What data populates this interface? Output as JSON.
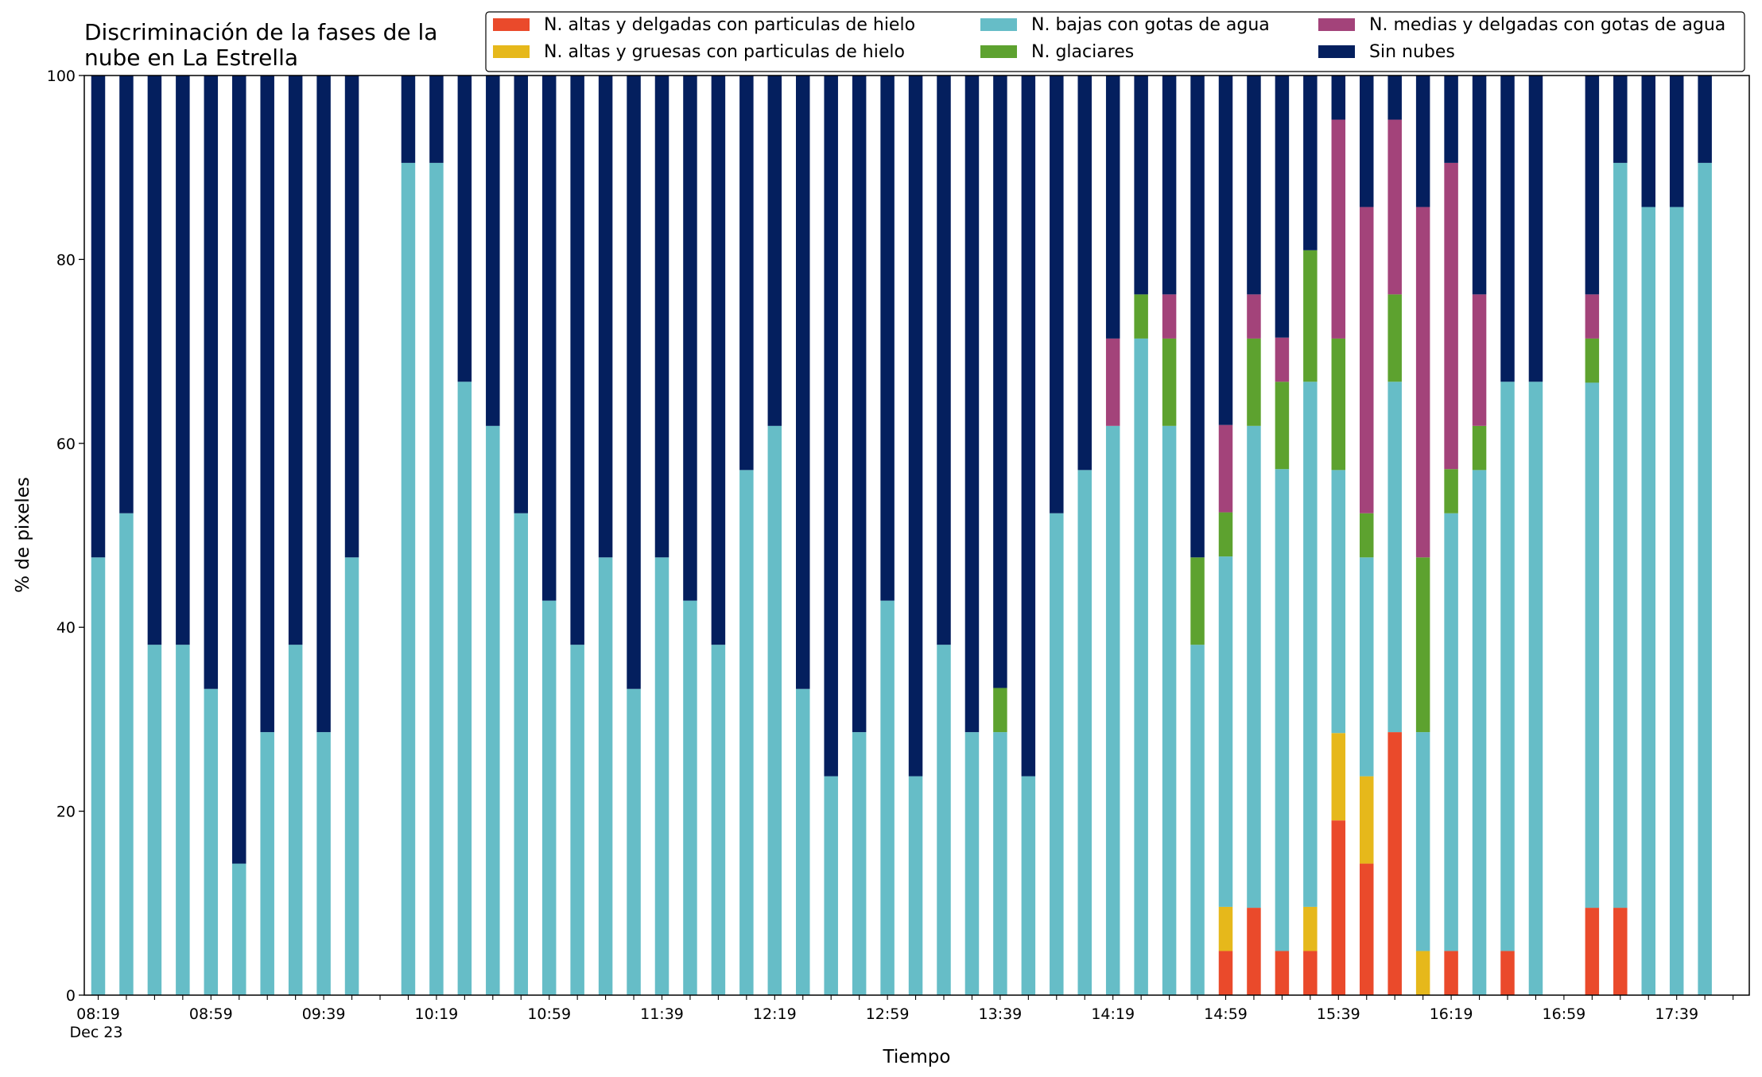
{
  "chart_data": {
    "type": "bar",
    "stacked": true,
    "title": "Discriminación de la fases de la\nnube en La Estrella",
    "xlabel": "Tiempo",
    "ylabel": "% de pixeles",
    "ylim": [
      0,
      100
    ],
    "yticks": [
      "0",
      "20",
      "40",
      "60",
      "80",
      "100"
    ],
    "grid": false,
    "legend_position": "top-right",
    "categories": [
      "08:19",
      "08:29",
      "08:39",
      "08:49",
      "08:59",
      "09:09",
      "09:19",
      "09:29",
      "09:39",
      "09:49",
      "09:59",
      "10:09",
      "10:19",
      "10:29",
      "10:39",
      "10:49",
      "10:59",
      "11:09",
      "11:19",
      "11:29",
      "11:39",
      "11:49",
      "11:59",
      "12:09",
      "12:19",
      "12:29",
      "12:39",
      "12:49",
      "12:59",
      "13:09",
      "13:19",
      "13:29",
      "13:39",
      "13:49",
      "13:59",
      "14:09",
      "14:19",
      "14:29",
      "14:39",
      "14:49",
      "14:59",
      "15:09",
      "15:19",
      "15:29",
      "15:39",
      "15:49",
      "15:59",
      "16:09",
      "16:19",
      "16:29",
      "16:39",
      "16:49",
      "16:59",
      "17:09",
      "17:19",
      "17:29",
      "17:39",
      "17:49"
    ],
    "xtick_labels": [
      {
        "text": "08:19",
        "index": 0,
        "sub": "Dec 23"
      },
      {
        "text": "08:59",
        "index": 4
      },
      {
        "text": "09:39",
        "index": 8
      },
      {
        "text": "10:19",
        "index": 12
      },
      {
        "text": "10:59",
        "index": 16
      },
      {
        "text": "11:39",
        "index": 20
      },
      {
        "text": "12:19",
        "index": 24
      },
      {
        "text": "12:59",
        "index": 28
      },
      {
        "text": "13:39",
        "index": 32
      },
      {
        "text": "14:19",
        "index": 36
      },
      {
        "text": "14:59",
        "index": 40
      },
      {
        "text": "15:39",
        "index": 44
      },
      {
        "text": "16:19",
        "index": 48
      },
      {
        "text": "16:59",
        "index": 52
      },
      {
        "text": "17:39",
        "index": 56
      }
    ],
    "series": [
      {
        "name": "N. altas y delgadas con particulas de hielo",
        "color": "#ea4a2b",
        "values": [
          0,
          0,
          0,
          0,
          0,
          0,
          0,
          0,
          0,
          0,
          0,
          0,
          0,
          0,
          0,
          0,
          0,
          0,
          0,
          0,
          0,
          0,
          0,
          0,
          0,
          0,
          0,
          0,
          0,
          0,
          0,
          0,
          0,
          0,
          0,
          0,
          0,
          0,
          0,
          0,
          4.8,
          9.5,
          4.8,
          4.8,
          19,
          14.3,
          28.6,
          0,
          4.8,
          0,
          4.8,
          0,
          0,
          9.5,
          9.5,
          0,
          0,
          0
        ]
      },
      {
        "name": "N. altas y gruesas con particulas de hielo",
        "color": "#e6b81b",
        "values": [
          0,
          0,
          0,
          0,
          0,
          0,
          0,
          0,
          0,
          0,
          0,
          0,
          0,
          0,
          0,
          0,
          0,
          0,
          0,
          0,
          0,
          0,
          0,
          0,
          0,
          0,
          0,
          0,
          0,
          0,
          0,
          0,
          0,
          0,
          0,
          0,
          0,
          0,
          0,
          0,
          4.8,
          0,
          0,
          4.8,
          9.5,
          9.5,
          0,
          4.8,
          0,
          0,
          0,
          0,
          0,
          0,
          0,
          0,
          0,
          0
        ]
      },
      {
        "name": "N. bajas con gotas de agua",
        "color": "#66bdc7",
        "values": [
          47.6,
          52.4,
          38.1,
          38.1,
          33.3,
          14.3,
          28.6,
          38.1,
          28.6,
          47.6,
          0,
          90.5,
          90.5,
          66.7,
          61.9,
          52.4,
          42.9,
          38.1,
          47.6,
          33.3,
          47.6,
          42.9,
          38.1,
          57.1,
          61.9,
          33.3,
          23.8,
          28.6,
          42.9,
          23.8,
          38.1,
          28.6,
          28.6,
          23.8,
          52.4,
          57.1,
          61.9,
          71.4,
          61.9,
          38.1,
          38.1,
          52.4,
          52.4,
          57.1,
          28.6,
          23.8,
          38.1,
          23.8,
          47.6,
          57.1,
          61.9,
          66.7,
          0,
          57.1,
          81,
          85.7,
          85.7,
          90.5
        ]
      },
      {
        "name": "N. glaciares",
        "color": "#5da22f",
        "values": [
          0,
          0,
          0,
          0,
          0,
          0,
          0,
          0,
          0,
          0,
          0,
          0,
          0,
          0,
          0,
          0,
          0,
          0,
          0,
          0,
          0,
          0,
          0,
          0,
          0,
          0,
          0,
          0,
          0,
          0,
          0,
          0,
          4.8,
          0,
          0,
          0,
          0,
          4.8,
          9.5,
          9.5,
          4.8,
          9.5,
          9.5,
          14.3,
          14.3,
          4.8,
          9.5,
          19,
          4.8,
          4.8,
          0,
          0,
          0,
          4.8,
          0,
          0,
          0,
          0
        ]
      },
      {
        "name": "N. medias y delgadas con gotas de agua",
        "color": "#a3437a",
        "values": [
          0,
          0,
          0,
          0,
          0,
          0,
          0,
          0,
          0,
          0,
          0,
          0,
          0,
          0,
          0,
          0,
          0,
          0,
          0,
          0,
          0,
          0,
          0,
          0,
          0,
          0,
          0,
          0,
          0,
          0,
          0,
          0,
          0,
          0,
          0,
          0,
          9.5,
          0,
          4.8,
          0,
          9.5,
          4.8,
          4.8,
          0,
          23.8,
          33.3,
          19,
          38.1,
          33.3,
          14.3,
          0,
          0,
          0,
          4.8,
          0,
          0,
          0,
          0
        ]
      },
      {
        "name": "Sin nubes",
        "color": "#041f5e",
        "values": [
          52.4,
          47.6,
          61.9,
          61.9,
          66.7,
          85.7,
          71.4,
          61.9,
          71.4,
          52.4,
          0,
          9.5,
          9.5,
          33.3,
          38.1,
          47.6,
          57.1,
          61.9,
          52.4,
          66.7,
          52.4,
          57.1,
          61.9,
          42.9,
          38.1,
          66.7,
          76.2,
          71.4,
          57.1,
          76.2,
          61.9,
          71.4,
          66.7,
          76.2,
          47.6,
          42.9,
          28.6,
          23.8,
          23.8,
          52.4,
          38.1,
          23.8,
          28.6,
          19,
          4.8,
          14.3,
          4.8,
          14.3,
          9.5,
          23.8,
          33.3,
          33.3,
          0,
          23.8,
          9.5,
          14.3,
          14.3,
          9.5
        ]
      }
    ]
  }
}
